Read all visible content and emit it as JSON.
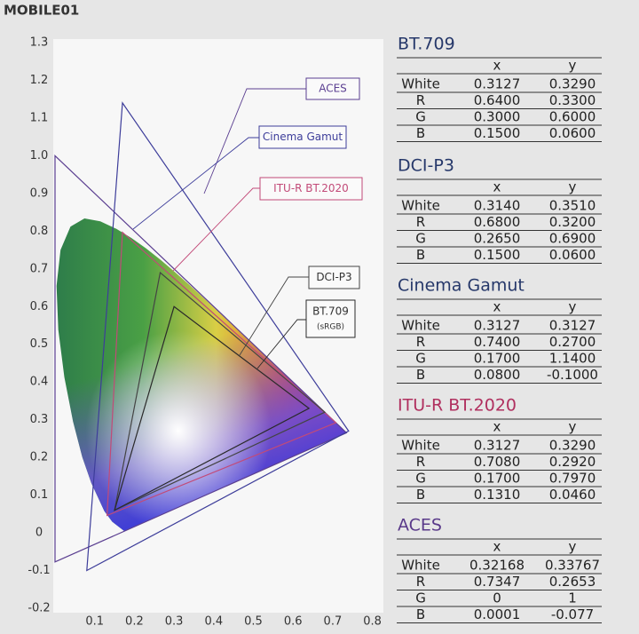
{
  "watermark": "MOBILE01",
  "chart_data": {
    "type": "gamut",
    "xlim": [
      0,
      0.82
    ],
    "ylim": [
      -0.2,
      1.3
    ],
    "xticks": [
      0.1,
      0.2,
      0.3,
      0.4,
      0.5,
      0.6,
      0.7,
      0.8
    ],
    "yticks": [
      -0.2,
      -0.1,
      0,
      0.1,
      0.2,
      0.3,
      0.4,
      0.5,
      0.6,
      0.7,
      0.8,
      0.9,
      {
        "value": 1,
        "label": "1.0"
      },
      1.1,
      1.2,
      1.3
    ],
    "series": [
      {
        "name": "ACES",
        "color": "#5b3f91",
        "x": [
          0.7347,
          0,
          0.0001
        ],
        "y": [
          0.2653,
          1,
          -0.077
        ]
      },
      {
        "name": "Cinema Gamut",
        "color": "#3d3d9a",
        "x": [
          0.74,
          0.17,
          0.08
        ],
        "y": [
          0.27,
          1.14,
          -0.1
        ]
      },
      {
        "name": "ITU-R BT.2020",
        "color": "#c24a78",
        "x": [
          0.708,
          0.17,
          0.131
        ],
        "y": [
          0.292,
          0.797,
          0.046
        ]
      },
      {
        "name": "DCI-P3",
        "color": "#444444",
        "x": [
          0.68,
          0.265,
          0.15
        ],
        "y": [
          0.32,
          0.69,
          0.06
        ]
      },
      {
        "name": "BT.709",
        "note": "(sRGB)",
        "color": "#2a2a2a",
        "x": [
          0.64,
          0.3,
          0.15
        ],
        "y": [
          0.33,
          0.6,
          0.06
        ]
      }
    ]
  },
  "tables": [
    {
      "title": "BT.709",
      "color": "#26386a",
      "columns": [
        "x",
        "y"
      ],
      "rows": [
        [
          "White",
          "0.3127",
          "0.3290"
        ],
        [
          "R",
          "0.6400",
          "0.3300"
        ],
        [
          "G",
          "0.3000",
          "0.6000"
        ],
        [
          "B",
          "0.1500",
          "0.0600"
        ]
      ]
    },
    {
      "title": "DCI-P3",
      "color": "#26386a",
      "columns": [
        "x",
        "y"
      ],
      "rows": [
        [
          "White",
          "0.3140",
          "0.3510"
        ],
        [
          "R",
          "0.6800",
          "0.3200"
        ],
        [
          "G",
          "0.2650",
          "0.6900"
        ],
        [
          "B",
          "0.1500",
          "0.0600"
        ]
      ]
    },
    {
      "title": "Cinema Gamut",
      "color": "#26386a",
      "columns": [
        "x",
        "y"
      ],
      "rows": [
        [
          "White",
          "0.3127",
          "0.3127"
        ],
        [
          "R",
          "0.7400",
          "0.2700"
        ],
        [
          "G",
          "0.1700",
          "1.1400"
        ],
        [
          "B",
          "0.0800",
          "-0.1000"
        ]
      ]
    },
    {
      "title": "ITU-R BT.2020",
      "color": "#b0305f",
      "columns": [
        "x",
        "y"
      ],
      "rows": [
        [
          "White",
          "0.3127",
          "0.3290"
        ],
        [
          "R",
          "0.7080",
          "0.2920"
        ],
        [
          "G",
          "0.1700",
          "0.7970"
        ],
        [
          "B",
          "0.1310",
          "0.0460"
        ]
      ]
    },
    {
      "title": "ACES",
      "color": "#5a3a8a",
      "columns": [
        "x",
        "y"
      ],
      "rows": [
        [
          "White",
          "0.32168",
          "0.33767"
        ],
        [
          "R",
          "0.7347",
          "0.2653"
        ],
        [
          "G",
          "0",
          "1"
        ],
        [
          "B",
          "0.0001",
          "-0.077"
        ]
      ]
    }
  ]
}
